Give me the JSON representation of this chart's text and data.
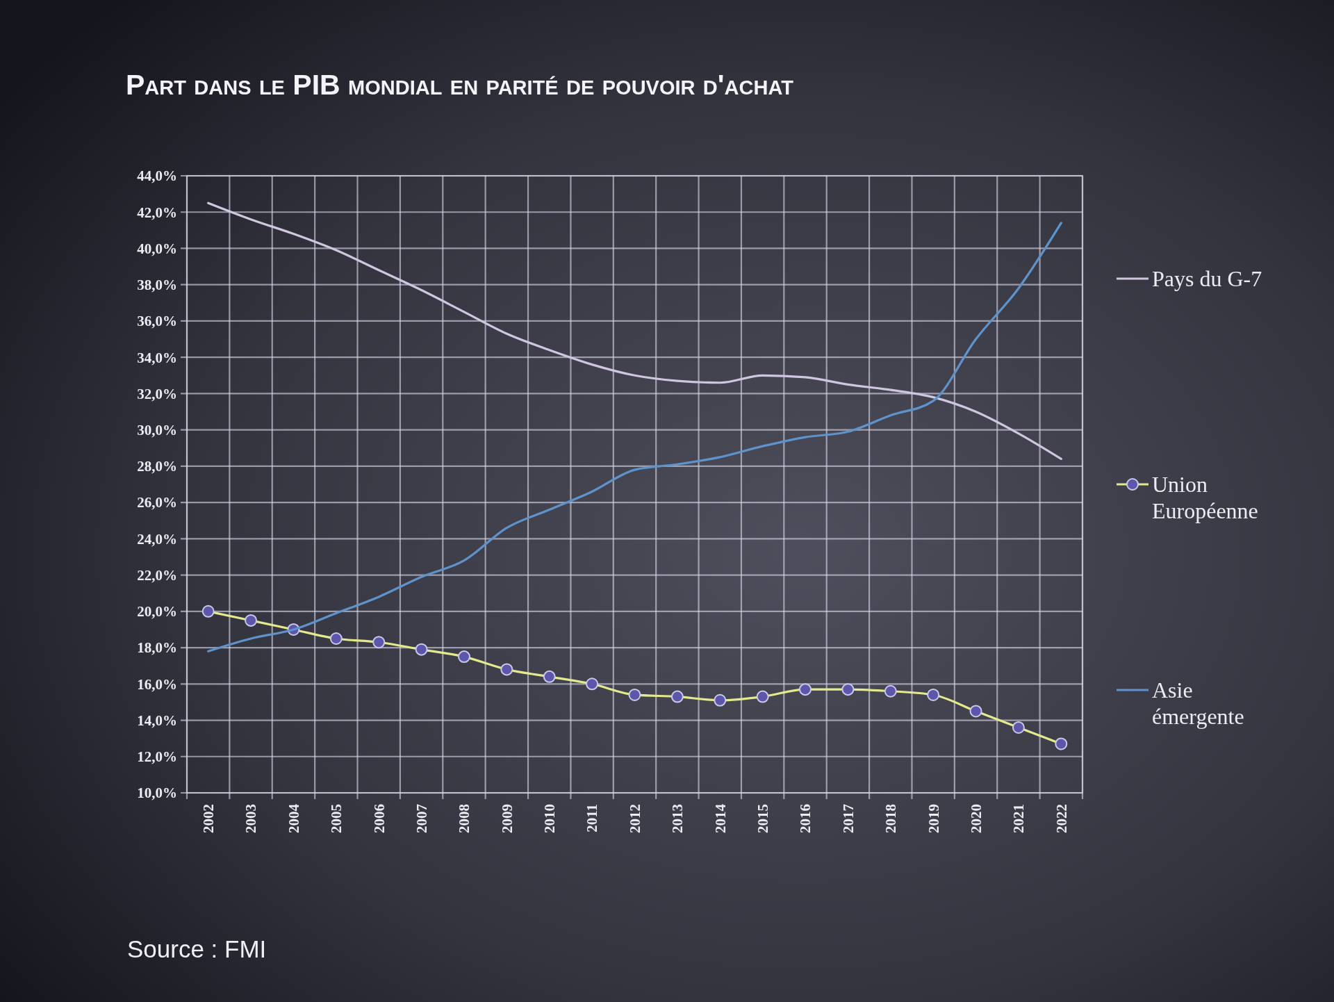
{
  "chart_data": {
    "type": "line",
    "title": "Part dans le PIB mondial en parité de pouvoir d'achat",
    "annotations": [
      "Source : FMI"
    ],
    "categories": [
      "2002",
      "2003",
      "2004",
      "2005",
      "2006",
      "2007",
      "2008",
      "2009",
      "2010",
      "2011",
      "2012",
      "2013",
      "2014",
      "2015",
      "2016",
      "2017",
      "2018",
      "2019",
      "2020",
      "2021",
      "2022"
    ],
    "series": [
      {
        "name": "Pays du G-7",
        "color": "#cfc6e0",
        "marker": "none",
        "values": [
          42.5,
          41.6,
          40.8,
          39.9,
          38.8,
          37.7,
          36.5,
          35.3,
          34.4,
          33.6,
          33.0,
          32.7,
          32.6,
          33.0,
          32.9,
          32.5,
          32.2,
          31.8,
          31.0,
          29.8,
          28.4
        ]
      },
      {
        "name": "Union Européenne",
        "color": "#e4ea8c",
        "marker": "circle",
        "values": [
          20.0,
          19.5,
          19.0,
          18.5,
          18.3,
          17.9,
          17.5,
          16.8,
          16.4,
          16.0,
          15.4,
          15.3,
          15.1,
          15.3,
          15.7,
          15.7,
          15.6,
          15.4,
          14.5,
          13.6,
          12.7
        ]
      },
      {
        "name": "Asie émergente",
        "color": "#5f93cc",
        "marker": "none",
        "values": [
          17.8,
          18.5,
          19.0,
          19.9,
          20.8,
          21.9,
          22.8,
          24.6,
          25.6,
          26.6,
          27.8,
          28.1,
          28.5,
          29.1,
          29.6,
          29.9,
          30.8,
          31.6,
          35.0,
          37.8,
          41.4
        ]
      }
    ],
    "ylim": [
      10,
      44
    ],
    "yticks": [
      {
        "value": 10,
        "label": "10,0%"
      },
      {
        "value": 12,
        "label": "12,0%"
      },
      {
        "value": 14,
        "label": "14,0%"
      },
      {
        "value": 16,
        "label": "16,0%"
      },
      {
        "value": 18,
        "label": "18,0%"
      },
      {
        "value": 20,
        "label": "20,0%"
      },
      {
        "value": 22,
        "label": "22,0%"
      },
      {
        "value": 24,
        "label": "24,0%"
      },
      {
        "value": 26,
        "label": "26,0%"
      },
      {
        "value": 28,
        "label": "28,0%"
      },
      {
        "value": 30,
        "label": "30,0%"
      },
      {
        "value": 32,
        "label": "32,0%"
      },
      {
        "value": 34,
        "label": "34,0%"
      },
      {
        "value": 36,
        "label": "36,0%"
      },
      {
        "value": 38,
        "label": "38,0%"
      },
      {
        "value": 40,
        "label": "40,0%"
      },
      {
        "value": 42,
        "label": "42,0%"
      },
      {
        "value": 44,
        "label": "44,0%"
      }
    ],
    "grid": true,
    "legend": "right"
  }
}
